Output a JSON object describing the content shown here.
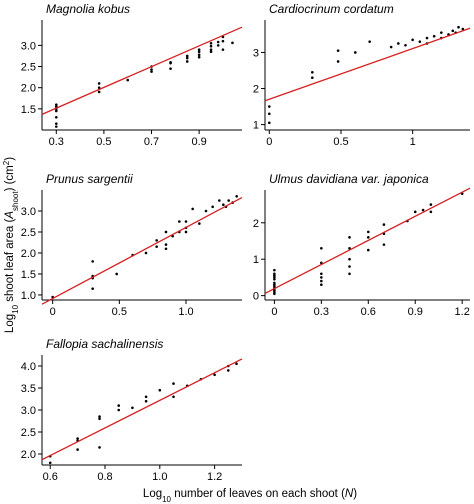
{
  "figure": {
    "ylabel_parts": [
      "Log",
      "10",
      " shoot leaf area (",
      "A",
      "shoot",
      ") (cm",
      "2",
      ")"
    ],
    "xlabel_parts": [
      "Log",
      "10",
      " number of leaves on each shoot (",
      "N",
      ")"
    ],
    "point_color": "#000000",
    "line_color": "#d62020"
  },
  "chart_data": [
    {
      "type": "scatter",
      "title": "Magnolia kobus",
      "xlim": [
        0.24,
        1.08
      ],
      "ylim": [
        1.0,
        3.6
      ],
      "xticks": [
        0.3,
        0.5,
        0.7,
        0.9
      ],
      "xtick_labels": [
        "0.3",
        "0.5",
        "0.7",
        "0.9"
      ],
      "yticks": [
        1.5,
        2.0,
        2.5,
        3.0
      ],
      "ytick_labels": [
        "1.5",
        "2.0",
        "2.5",
        "3.0"
      ],
      "x": [
        0.3,
        0.3,
        0.3,
        0.3,
        0.3,
        0.3,
        0.3,
        0.48,
        0.48,
        0.48,
        0.6,
        0.7,
        0.7,
        0.7,
        0.78,
        0.78,
        0.78,
        0.85,
        0.85,
        0.85,
        0.9,
        0.9,
        0.9,
        0.9,
        0.95,
        0.95,
        0.95,
        0.95,
        0.98,
        0.98,
        1.0,
        1.0,
        1.0,
        1.04
      ],
      "y": [
        1.08,
        1.15,
        1.45,
        1.5,
        1.55,
        1.6,
        1.3,
        1.9,
        2.0,
        2.1,
        2.18,
        2.38,
        2.43,
        2.5,
        2.45,
        2.58,
        2.6,
        2.62,
        2.7,
        2.75,
        2.72,
        2.78,
        2.85,
        2.9,
        2.85,
        2.9,
        2.98,
        3.05,
        3.0,
        3.08,
        2.9,
        3.1,
        3.2,
        3.06
      ],
      "fit": {
        "x": [
          0.24,
          1.08
        ],
        "y": [
          1.37,
          3.43
        ]
      }
    },
    {
      "type": "scatter",
      "title": "Cardiocrinum cordatum",
      "xlim": [
        -0.03,
        1.4
      ],
      "ylim": [
        0.85,
        3.9
      ],
      "xticks": [
        0,
        0.5,
        1
      ],
      "xtick_labels": [
        "0",
        "0.5",
        "1"
      ],
      "yticks": [
        1,
        2,
        3
      ],
      "ytick_labels": [
        "1",
        "2",
        "3"
      ],
      "x": [
        0,
        0,
        0,
        0.3,
        0.3,
        0.48,
        0.48,
        0.6,
        0.7,
        0.85,
        0.9,
        0.95,
        1.0,
        1.05,
        1.1,
        1.1,
        1.15,
        1.2,
        1.2,
        1.25,
        1.28,
        1.3,
        1.32,
        1.35
      ],
      "y": [
        1.05,
        1.3,
        1.5,
        2.3,
        2.45,
        2.75,
        3.05,
        3.0,
        3.3,
        3.15,
        3.25,
        3.2,
        3.35,
        3.3,
        3.25,
        3.4,
        3.45,
        3.4,
        3.55,
        3.5,
        3.6,
        3.55,
        3.7,
        3.65
      ],
      "fit": {
        "x": [
          -0.03,
          1.4
        ],
        "y": [
          1.66,
          3.67
        ]
      }
    },
    {
      "type": "scatter",
      "title": "Prunus sargentii",
      "xlim": [
        -0.08,
        1.42
      ],
      "ylim": [
        0.88,
        3.5
      ],
      "xticks": [
        0,
        0.5,
        1.0
      ],
      "xtick_labels": [
        "0",
        "0.5",
        "1.0"
      ],
      "yticks": [
        1.0,
        1.5,
        2.0,
        2.5,
        3.0
      ],
      "ytick_labels": [
        "1.0",
        "1.5",
        "2.0",
        "2.5",
        "3.0"
      ],
      "x": [
        0,
        0.3,
        0.3,
        0.3,
        0.3,
        0.48,
        0.6,
        0.7,
        0.78,
        0.78,
        0.85,
        0.85,
        0.85,
        0.9,
        0.95,
        0.95,
        1.0,
        1.0,
        1.0,
        1.05,
        1.1,
        1.15,
        1.2,
        1.25,
        1.28,
        1.3,
        1.32,
        1.35,
        1.38
      ],
      "y": [
        0.95,
        1.8,
        1.4,
        1.45,
        1.15,
        1.5,
        1.95,
        2.0,
        2.3,
        2.15,
        2.2,
        2.1,
        2.5,
        2.4,
        2.5,
        2.75,
        2.75,
        2.5,
        2.6,
        3.05,
        2.7,
        3.0,
        3.1,
        3.25,
        3.15,
        3.1,
        3.25,
        3.2,
        3.35
      ],
      "fit": {
        "x": [
          -0.08,
          1.42
        ],
        "y": [
          0.78,
          3.32
        ]
      }
    },
    {
      "type": "scatter",
      "title": "Ulmus davidiana var. japonica",
      "xlim": [
        -0.06,
        1.25
      ],
      "ylim": [
        -0.12,
        2.9
      ],
      "xticks": [
        0,
        0.3,
        0.6,
        0.9,
        1.2
      ],
      "xtick_labels": [
        "0",
        "0.3",
        "0.6",
        "0.9",
        "1.2"
      ],
      "yticks": [
        0,
        1,
        2
      ],
      "ytick_labels": [
        "0",
        "1",
        "2"
      ],
      "x": [
        0,
        0,
        0,
        0,
        0,
        0,
        0,
        0,
        0,
        0,
        0,
        0,
        0.3,
        0.3,
        0.3,
        0.3,
        0.3,
        0.3,
        0.48,
        0.48,
        0.48,
        0.48,
        0.48,
        0.6,
        0.6,
        0.6,
        0.7,
        0.7,
        0.7,
        0.85,
        0.9,
        0.95,
        1.0,
        1.0,
        1.2
      ],
      "y": [
        0.05,
        0.1,
        0.15,
        0.2,
        0.25,
        0.3,
        0.35,
        0.45,
        0.5,
        0.55,
        0.6,
        0.7,
        0.3,
        0.4,
        0.5,
        0.6,
        0.9,
        1.3,
        0.6,
        0.8,
        1.0,
        1.3,
        1.6,
        1.25,
        1.6,
        1.75,
        1.4,
        1.7,
        1.95,
        2.05,
        2.3,
        2.35,
        2.3,
        2.5,
        2.8
      ],
      "fit": {
        "x": [
          -0.06,
          1.25
        ],
        "y": [
          0.06,
          2.95
        ]
      }
    },
    {
      "type": "scatter",
      "title": "Fallopia sachalinensis",
      "xlim": [
        0.57,
        1.3
      ],
      "ylim": [
        1.75,
        4.25
      ],
      "xticks": [
        0.6,
        0.8,
        1.0,
        1.2
      ],
      "xtick_labels": [
        "0.6",
        "0.8",
        "1.0",
        "1.2"
      ],
      "yticks": [
        2.0,
        2.5,
        3.0,
        3.5,
        4.0
      ],
      "ytick_labels": [
        "2.0",
        "2.5",
        "3.0",
        "3.5",
        "4.0"
      ],
      "x": [
        0.6,
        0.6,
        0.7,
        0.7,
        0.7,
        0.78,
        0.78,
        0.78,
        0.85,
        0.85,
        0.9,
        0.95,
        0.95,
        1.0,
        1.05,
        1.05,
        1.1,
        1.15,
        1.2,
        1.25,
        1.25,
        1.28
      ],
      "y": [
        1.8,
        1.95,
        2.1,
        2.3,
        2.35,
        2.15,
        2.8,
        2.85,
        3.0,
        3.1,
        3.05,
        3.2,
        3.3,
        3.45,
        3.3,
        3.6,
        3.55,
        3.7,
        3.8,
        3.9,
        4.0,
        4.05
      ],
      "fit": {
        "x": [
          0.57,
          1.3
        ],
        "y": [
          1.87,
          4.16
        ]
      }
    }
  ]
}
